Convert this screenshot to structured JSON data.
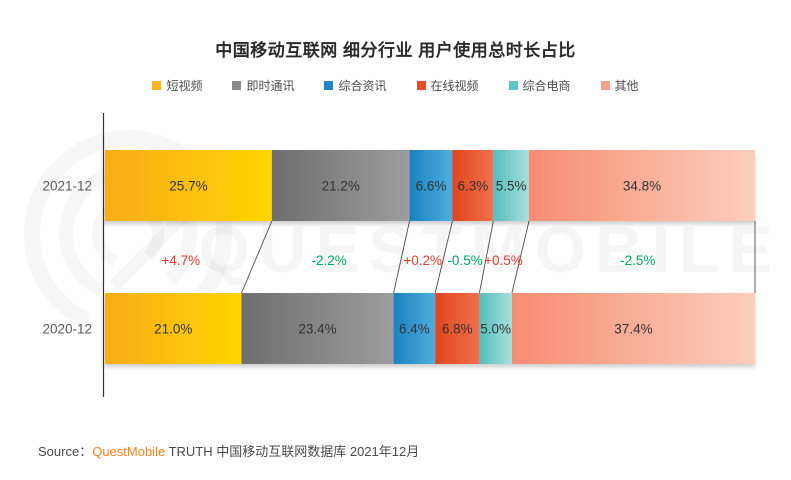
{
  "title": "中国移动互联网 细分行业 用户使用总时长占比",
  "watermark": "QUESTMOBILE",
  "chart_data": {
    "type": "stacked-bar-horizontal",
    "title": "中国移动互联网 细分行业 用户使用总时长占比",
    "categories": [
      "2021-12",
      "2020-12"
    ],
    "segments": [
      {
        "label": "短视频",
        "legend_color": "#FBB616",
        "gradient": [
          "#F9AD19",
          "#FFD400"
        ]
      },
      {
        "label": "即时通讯",
        "legend_color": "#8A8A8A",
        "gradient": [
          "#6E6E6E",
          "#9D9D9D"
        ]
      },
      {
        "label": "综合资讯",
        "legend_color": "#1E88C8",
        "gradient": [
          "#1A82C2",
          "#4FAEDC"
        ]
      },
      {
        "label": "在线视频",
        "legend_color": "#E84E23",
        "gradient": [
          "#E0451E",
          "#F0714C"
        ]
      },
      {
        "label": "综合电商",
        "legend_color": "#5EC5C4",
        "gradient": [
          "#53BEBF",
          "#A8DFDC"
        ]
      },
      {
        "label": "其他",
        "legend_color": "#F8A08F",
        "gradient": [
          "#F78C72",
          "#FBCFBD"
        ]
      }
    ],
    "series": [
      {
        "name": "2021-12",
        "values": [
          25.7,
          21.2,
          6.6,
          6.3,
          5.5,
          34.8
        ]
      },
      {
        "name": "2020-12",
        "values": [
          21.0,
          23.4,
          6.4,
          6.8,
          5.0,
          37.4
        ]
      }
    ],
    "value_suffix": "%",
    "changes": [
      "+4.7%",
      "-2.2%",
      "+0.2%",
      "-0.5%",
      "+0.5%",
      "-2.5%"
    ],
    "change_colors": {
      "up": "#E8392B",
      "down": "#00A860"
    },
    "label_color": "#333333",
    "category_label_color": "#5A5A5A",
    "axis_color": "#333333",
    "connector_color": "#4D4D4D",
    "legend_position": "top",
    "grid": false
  },
  "source": {
    "prefix": "Source：",
    "brand": "QuestMobile",
    "brand_color": "#F5831C",
    "rest": " TRUTH 中国移动互联网数据库 2021年12月"
  }
}
